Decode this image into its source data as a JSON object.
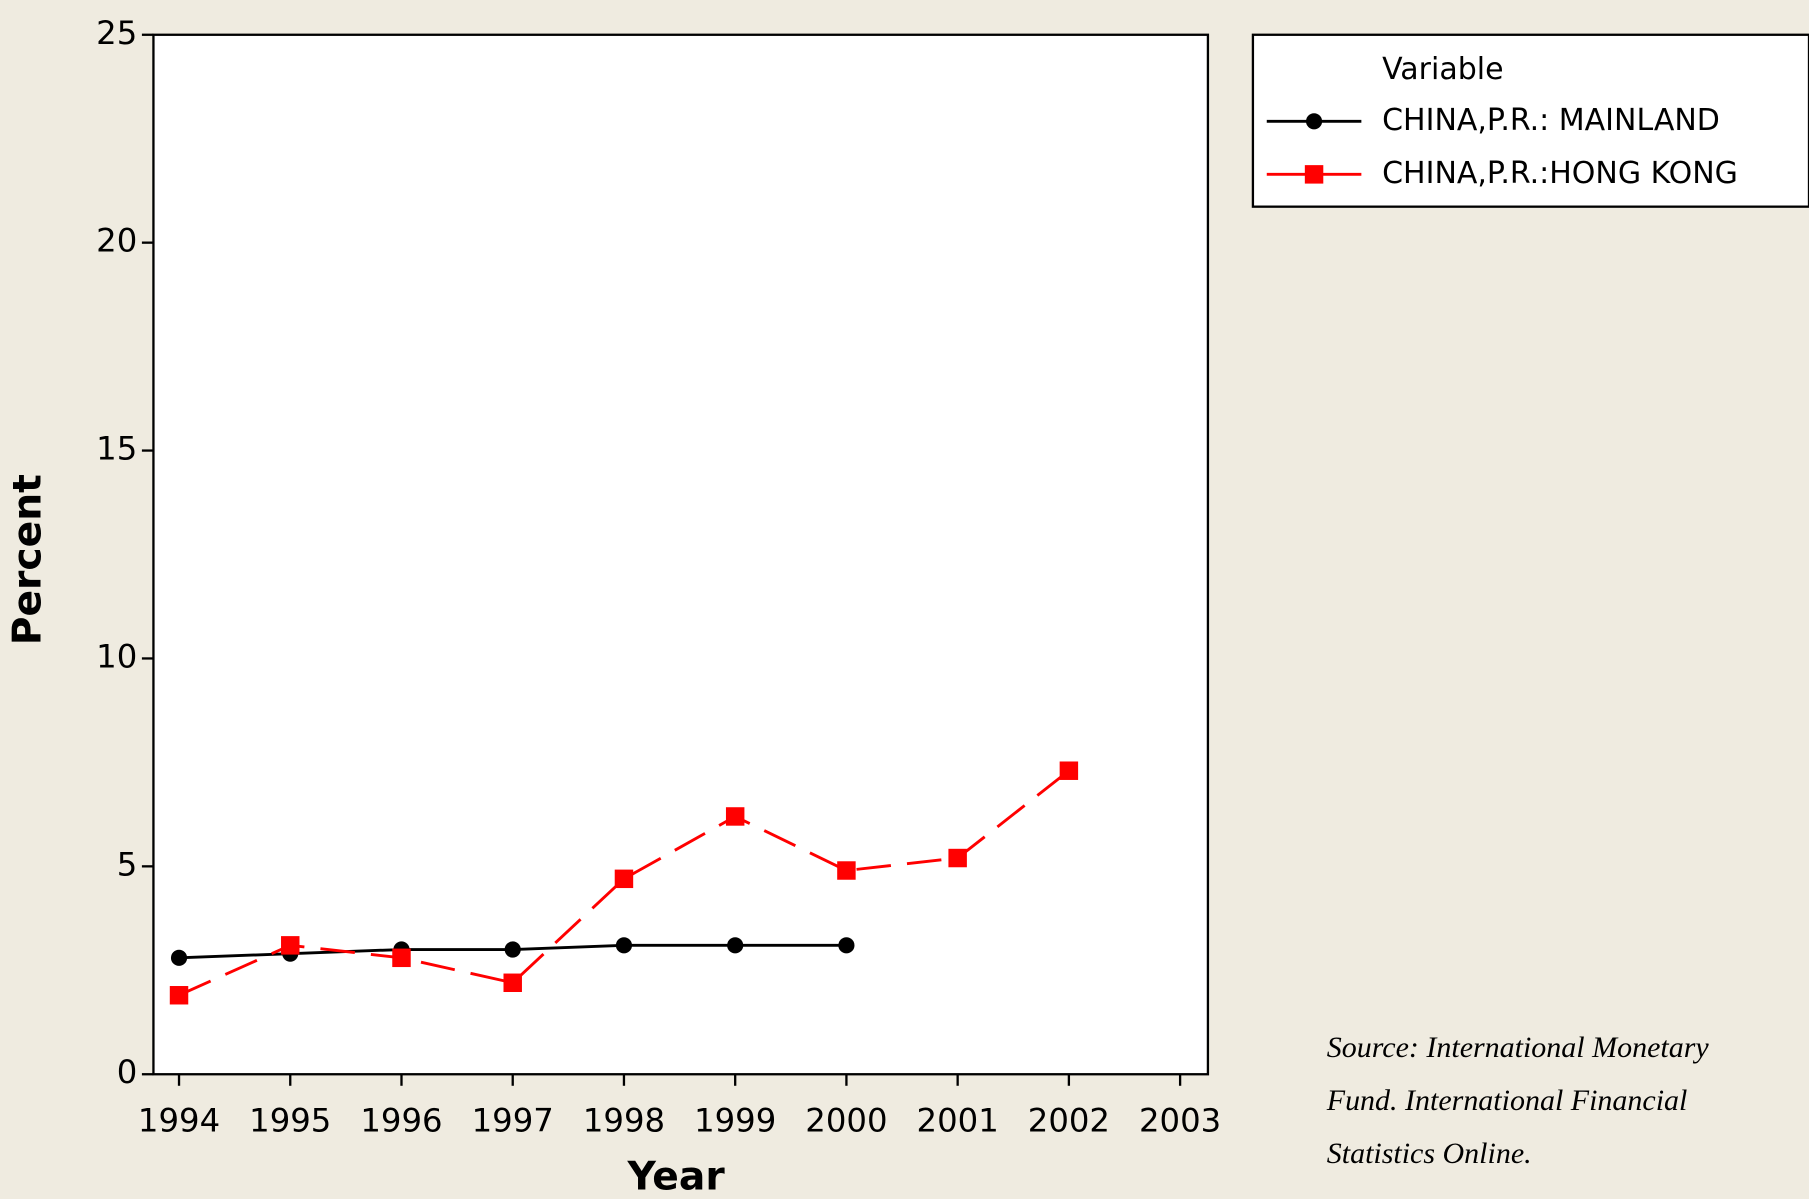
{
  "chart_data": {
    "type": "line",
    "x_label": "Year",
    "y_label": "Percent",
    "x": [
      1994,
      1995,
      1996,
      1997,
      1998,
      1999,
      2000,
      2001,
      2002
    ],
    "series": [
      {
        "name": "CHINA,P.R.: MAINLAND",
        "color": "#000000",
        "marker": "circle",
        "dash": false,
        "values": [
          2.8,
          2.9,
          3.0,
          3.0,
          3.1,
          3.1,
          3.1,
          null,
          null
        ]
      },
      {
        "name": "CHINA,P.R.:HONG KONG",
        "color": "#ff0000",
        "marker": "square",
        "dash": true,
        "values": [
          1.9,
          3.1,
          2.8,
          2.2,
          4.7,
          6.2,
          4.9,
          5.2,
          7.3
        ]
      }
    ],
    "xlim": [
      1993.77,
      2003.25
    ],
    "xticks": [
      1994,
      1995,
      1996,
      1997,
      1998,
      1999,
      2000,
      2001,
      2002,
      2003
    ],
    "ylim": [
      0,
      25
    ],
    "yticks": [
      0,
      5,
      10,
      15,
      20,
      25
    ],
    "legend_title": "Variable",
    "legend_position": "outside-top-right",
    "source": [
      "Source: International Monetary",
      "Fund. International Financial",
      "Statistics Online."
    ]
  }
}
